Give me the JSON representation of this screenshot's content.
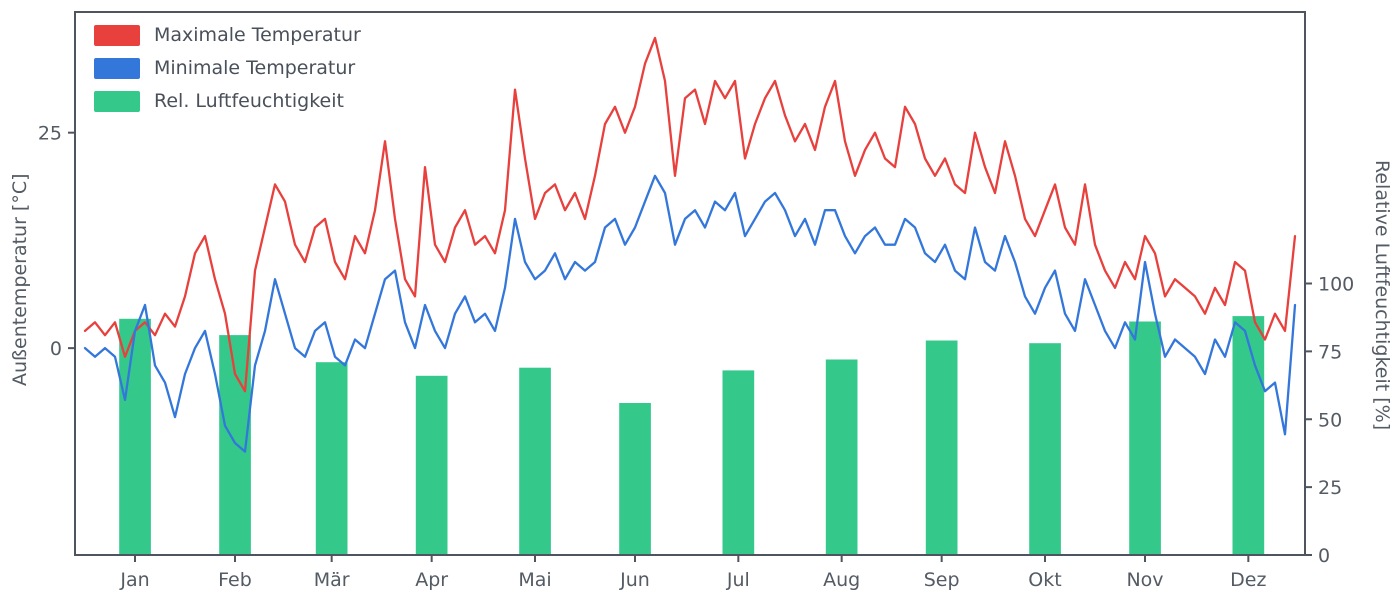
{
  "figure": {
    "background": "#ffffff",
    "axis_color": "#4f555e",
    "text_color": "#545b64"
  },
  "legend": {
    "position": "upper left",
    "items": [
      {
        "label": "Maximale Temperatur",
        "color": "#e8403d"
      },
      {
        "label": "Minimale Temperatur",
        "color": "#3477db"
      },
      {
        "label": "Rel. Luftfeuchtigkeit",
        "color": "#34c98a"
      }
    ]
  },
  "chart_data": {
    "type": "mixed",
    "title": "",
    "grid": false,
    "legend_position": "upper left",
    "x_axis": {
      "tick_labels": [
        "Jan",
        "Feb",
        "Mär",
        "Apr",
        "Mai",
        "Jun",
        "Jul",
        "Aug",
        "Sep",
        "Okt",
        "Nov",
        "Dez"
      ],
      "tick_days": [
        15,
        45,
        74,
        104,
        135,
        165,
        196,
        227,
        257,
        288,
        318,
        349
      ],
      "range_days": [
        -3,
        366
      ]
    },
    "left_axis": {
      "label": "Außentemperatur [°C]",
      "ticks": [
        0,
        25
      ],
      "range": [
        -24,
        39
      ]
    },
    "right_axis": {
      "label": "Relative Luftfeuchtigkeit [%]",
      "ticks": [
        0,
        25,
        50,
        75,
        100
      ],
      "range": [
        0,
        200
      ]
    },
    "series": [
      {
        "id": "max-temp",
        "name": "Maximale Temperatur",
        "type": "line",
        "axis": "left",
        "color": "#e8403d",
        "start_day": 0,
        "sample_interval_days": 3,
        "values": [
          2,
          3,
          1.5,
          3,
          -1,
          2,
          3,
          1.5,
          4,
          2.5,
          6,
          11,
          13,
          8,
          4,
          -3,
          -5,
          9,
          14,
          19,
          17,
          12,
          10,
          14,
          15,
          10,
          8,
          13,
          11,
          16,
          24,
          15,
          8,
          6,
          21,
          12,
          10,
          14,
          16,
          12,
          13,
          11,
          16,
          30,
          22,
          15,
          18,
          19,
          16,
          18,
          15,
          20,
          26,
          28,
          25,
          28,
          33,
          36,
          31,
          20,
          29,
          30,
          26,
          31,
          29,
          31,
          22,
          26,
          29,
          31,
          27,
          24,
          26,
          23,
          28,
          31,
          24,
          20,
          23,
          25,
          22,
          21,
          28,
          26,
          22,
          20,
          22,
          19,
          18,
          25,
          21,
          18,
          24,
          20,
          15,
          13,
          16,
          19,
          14,
          12,
          19,
          12,
          9,
          7,
          10,
          8,
          13,
          11,
          6,
          8,
          7,
          6,
          4,
          7,
          5,
          10,
          9,
          3,
          1,
          4,
          2,
          13
        ]
      },
      {
        "id": "min-temp",
        "name": "Minimale Temperatur",
        "type": "line",
        "axis": "left",
        "color": "#3477db",
        "start_day": 0,
        "sample_interval_days": 3,
        "values": [
          0,
          -1,
          0,
          -1,
          -6,
          2,
          5,
          -2,
          -4,
          -8,
          -3,
          0,
          2,
          -3,
          -9,
          -11,
          -12,
          -2,
          2,
          8,
          4,
          0,
          -1,
          2,
          3,
          -1,
          -2,
          1,
          0,
          4,
          8,
          9,
          3,
          0,
          5,
          2,
          0,
          4,
          6,
          3,
          4,
          2,
          7,
          15,
          10,
          8,
          9,
          11,
          8,
          10,
          9,
          10,
          14,
          15,
          12,
          14,
          17,
          20,
          18,
          12,
          15,
          16,
          14,
          17,
          16,
          18,
          13,
          15,
          17,
          18,
          16,
          13,
          15,
          12,
          16,
          16,
          13,
          11,
          13,
          14,
          12,
          12,
          15,
          14,
          11,
          10,
          12,
          9,
          8,
          14,
          10,
          9,
          13,
          10,
          6,
          4,
          7,
          9,
          4,
          2,
          8,
          5,
          2,
          0,
          3,
          1,
          10,
          4,
          -1,
          1,
          0,
          -1,
          -3,
          1,
          -1,
          3,
          2,
          -2,
          -5,
          -4,
          -10,
          5
        ]
      },
      {
        "id": "humidity",
        "name": "Rel. Luftfeuchtigkeit",
        "type": "bar",
        "axis": "right",
        "color": "#34c98a",
        "categories": [
          "Jan",
          "Feb",
          "Mär",
          "Apr",
          "Mai",
          "Jun",
          "Jul",
          "Aug",
          "Sep",
          "Okt",
          "Nov",
          "Dez"
        ],
        "x_days": [
          15,
          45,
          74,
          104,
          135,
          165,
          196,
          227,
          257,
          288,
          318,
          349
        ],
        "bar_width_days": 9.5,
        "values": [
          87,
          81,
          71,
          66,
          69,
          56,
          68,
          72,
          79,
          78,
          86,
          88
        ]
      }
    ]
  }
}
